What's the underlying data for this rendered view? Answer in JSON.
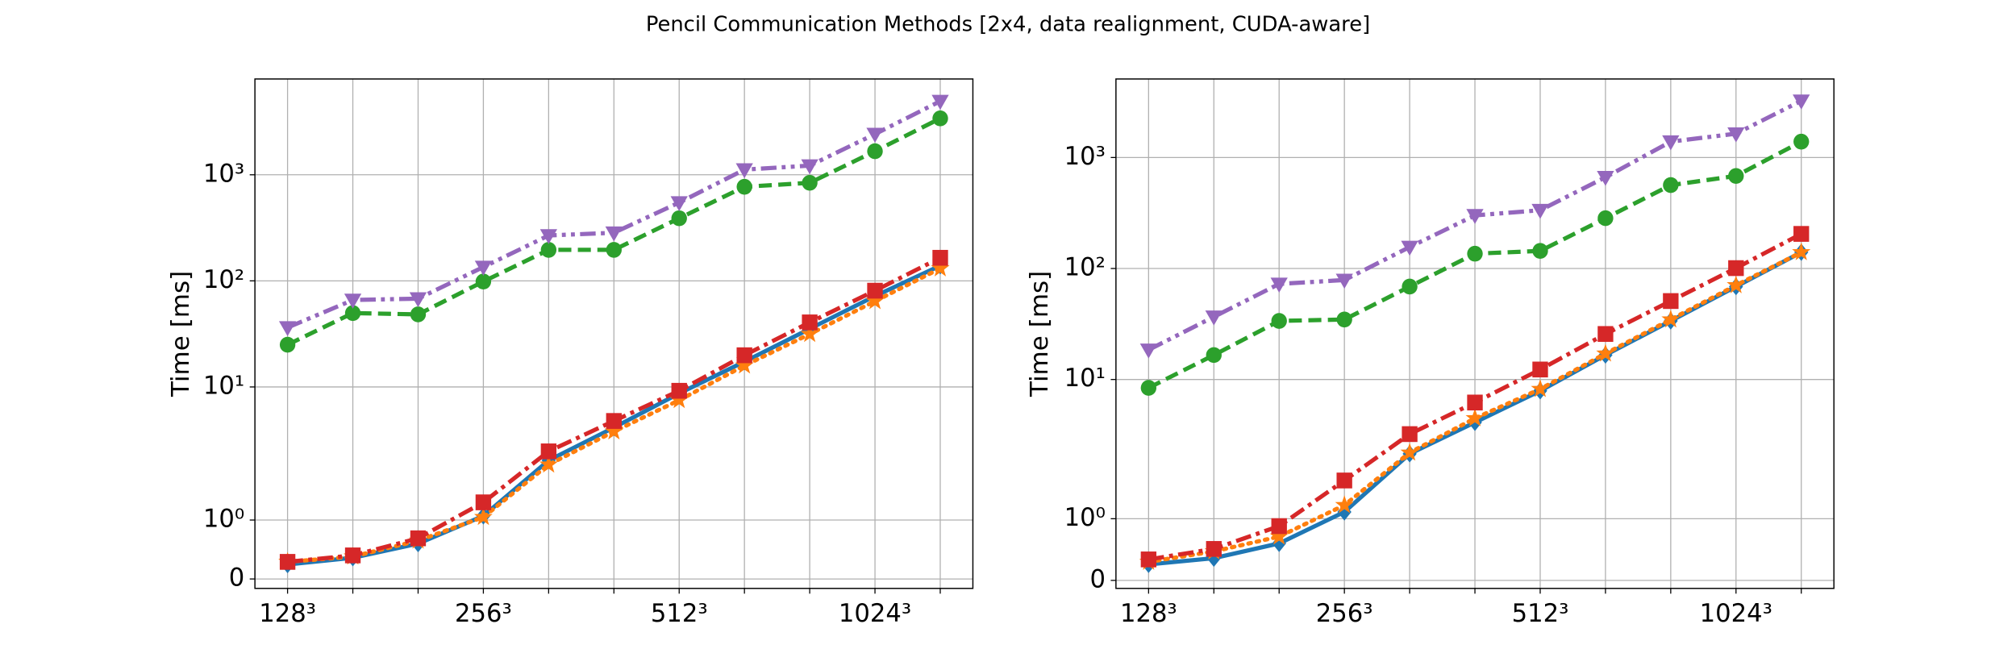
{
  "title": "Pencil Communication Methods [2x4, data realignment, CUDA-aware]",
  "chart_data": [
    {
      "type": "line",
      "ylabel": "Time [ms]",
      "yscale": "symlog",
      "linthresh": 2,
      "grid": true,
      "categories": [
        "128³",
        null,
        null,
        "256³",
        null,
        null,
        "512³",
        null,
        null,
        "1024³",
        null
      ],
      "xlim": [
        -0.5,
        10.5
      ],
      "ylim": [
        -0.16,
        8000
      ],
      "yticks": [
        0,
        {
          "value": 1,
          "label": "10⁰"
        },
        {
          "value": 10,
          "label": "10¹"
        },
        {
          "value": 100,
          "label": "10²"
        },
        {
          "value": 1000,
          "label": "10³"
        }
      ],
      "series": [
        {
          "color": "#1f77b4",
          "marker": "diamond",
          "linestyle": "solid",
          "values": [
            0.245,
            0.36,
            0.6,
            1.07,
            2.03,
            4.14,
            8.7,
            17.3,
            35.3,
            71.9,
            139
          ]
        },
        {
          "color": "#ff7f0e",
          "marker": "star",
          "linestyle": "dotted",
          "values": [
            0.29,
            0.38,
            0.65,
            1.05,
            1.94,
            3.8,
            7.5,
            15.9,
            31.5,
            64.3,
            131
          ]
        },
        {
          "color": "#2ca02c",
          "marker": "circle",
          "linestyle": "dashed",
          "values": [
            25,
            49.7,
            48.3,
            98.6,
            196,
            196,
            389,
            771,
            840,
            1667,
            3400
          ]
        },
        {
          "color": "#d62728",
          "marker": "square",
          "linestyle": "dashdot",
          "values": [
            0.29,
            0.4,
            0.69,
            1.3,
            2.47,
            4.78,
            9.2,
            19.9,
            40.6,
            80.8,
            165
          ]
        },
        {
          "color": "#9467bd",
          "marker": "triangle-down",
          "linestyle": "dashdotdot",
          "values": [
            36.3,
            66,
            68,
            135,
            268,
            284,
            547,
            1119,
            1220,
            2420,
            4940
          ]
        }
      ]
    },
    {
      "type": "line",
      "ylabel": "Time [ms]",
      "yscale": "symlog",
      "linthresh": 2,
      "grid": true,
      "categories": [
        "128³",
        null,
        null,
        "256³",
        null,
        null,
        "512³",
        null,
        null,
        "1024³",
        null
      ],
      "xlim": [
        -0.5,
        10.5
      ],
      "ylim": [
        -0.13,
        5100
      ],
      "yticks": [
        0,
        {
          "value": 1,
          "label": "10⁰"
        },
        {
          "value": 10,
          "label": "10¹"
        },
        {
          "value": 100,
          "label": "10²"
        },
        {
          "value": 1000,
          "label": "10³"
        }
      ],
      "series": [
        {
          "color": "#1f77b4",
          "marker": "diamond",
          "linestyle": "solid",
          "values": [
            0.26,
            0.36,
            0.6,
            1.11,
            2.14,
            4.11,
            7.9,
            16.6,
            33.7,
            68.7,
            140
          ]
        },
        {
          "color": "#ff7f0e",
          "marker": "star",
          "linestyle": "dotted",
          "values": [
            0.3,
            0.47,
            0.71,
            1.22,
            2.19,
            4.47,
            8.2,
            17.1,
            34.7,
            70.6,
            140
          ]
        },
        {
          "color": "#2ca02c",
          "marker": "circle",
          "linestyle": "dashed",
          "values": [
            8.4,
            16.6,
            33.7,
            34.7,
            68.7,
            136,
            144,
            284,
            564,
            682,
            1390
          ]
        },
        {
          "color": "#d62728",
          "marker": "square",
          "linestyle": "dashdot",
          "values": [
            0.34,
            0.51,
            0.88,
            1.62,
            3.22,
            6.2,
            12.3,
            25.7,
            50.9,
            100.8,
            205
          ]
        },
        {
          "color": "#9467bd",
          "marker": "triangle-down",
          "linestyle": "dashdotdot",
          "values": [
            18.5,
            36.7,
            72.6,
            78.7,
            156,
            301,
            335,
            664,
            1390,
            1640,
            3240
          ]
        }
      ]
    }
  ]
}
